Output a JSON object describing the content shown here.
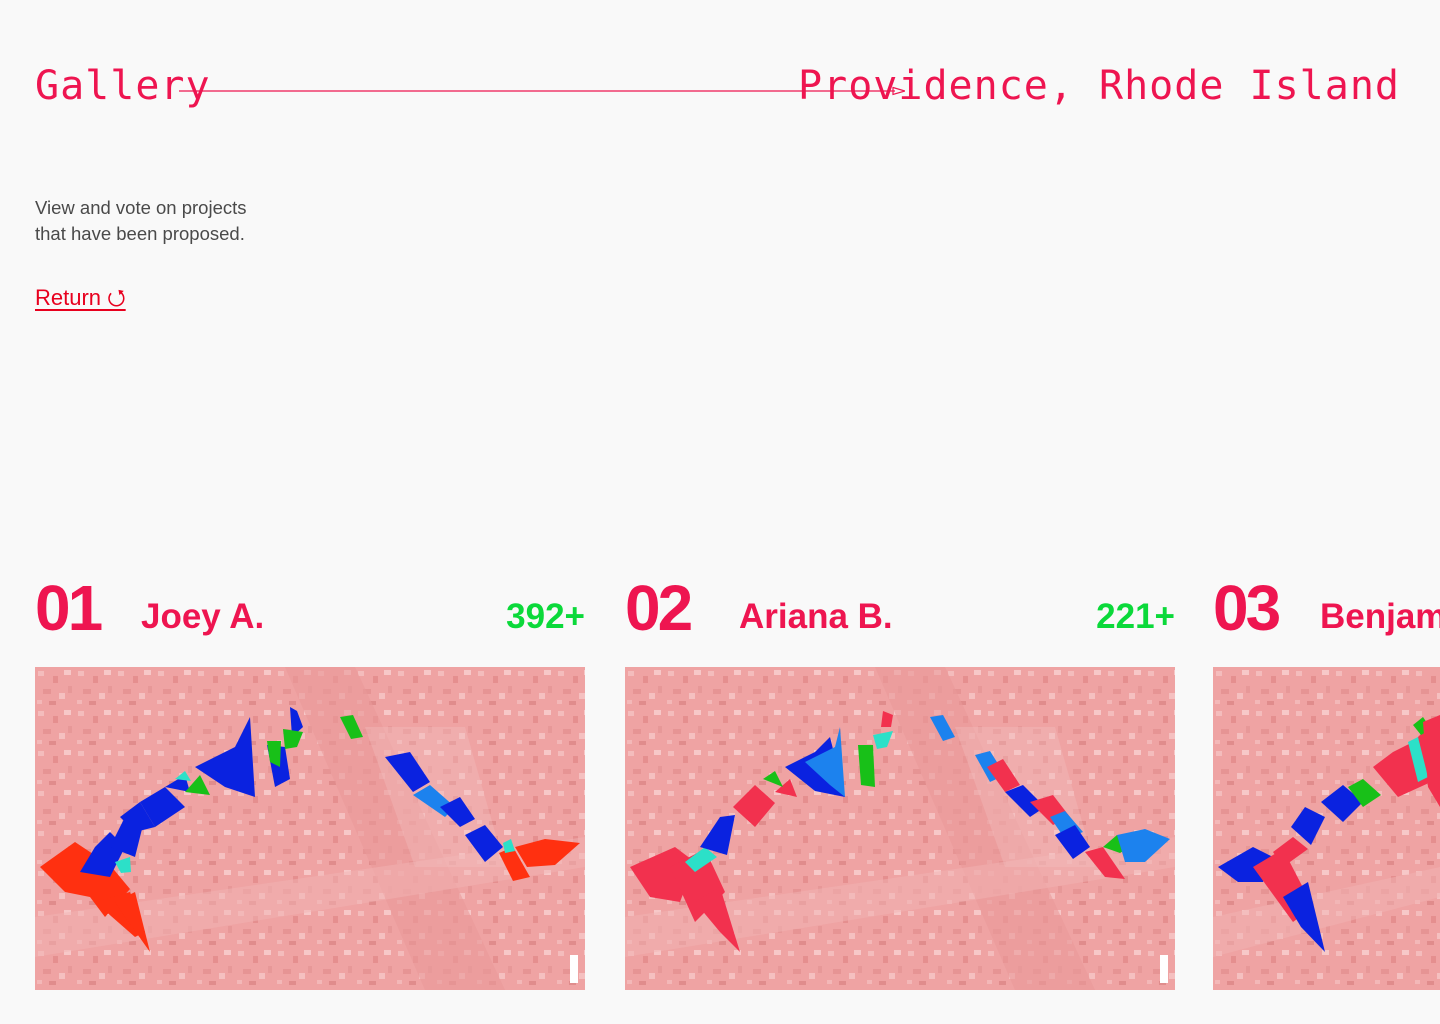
{
  "header": {
    "title": "Gallery",
    "location": "Providence, Rhode Island",
    "accent_color": "#ee1550"
  },
  "intro": {
    "line1": "View and vote on projects",
    "line2": "that have been proposed."
  },
  "return_link": {
    "label": "Return ⭯",
    "color": "#e8001e"
  },
  "projects": [
    {
      "number": "01",
      "name": "Joey A.",
      "votes": "392+"
    },
    {
      "number": "02",
      "name": "Ariana B.",
      "votes": "221+"
    },
    {
      "number": "03",
      "name": "Benjam"
    }
  ],
  "colors": {
    "map_background": "#efa3a3",
    "zone_red": "#ff3010",
    "zone_pink_red": "#f2314e",
    "zone_blue": "#0a22e0",
    "zone_light_blue": "#1c82ee",
    "zone_green": "#18c018",
    "zone_cyan": "#2ce0c8",
    "votes": "#0bd93a"
  }
}
